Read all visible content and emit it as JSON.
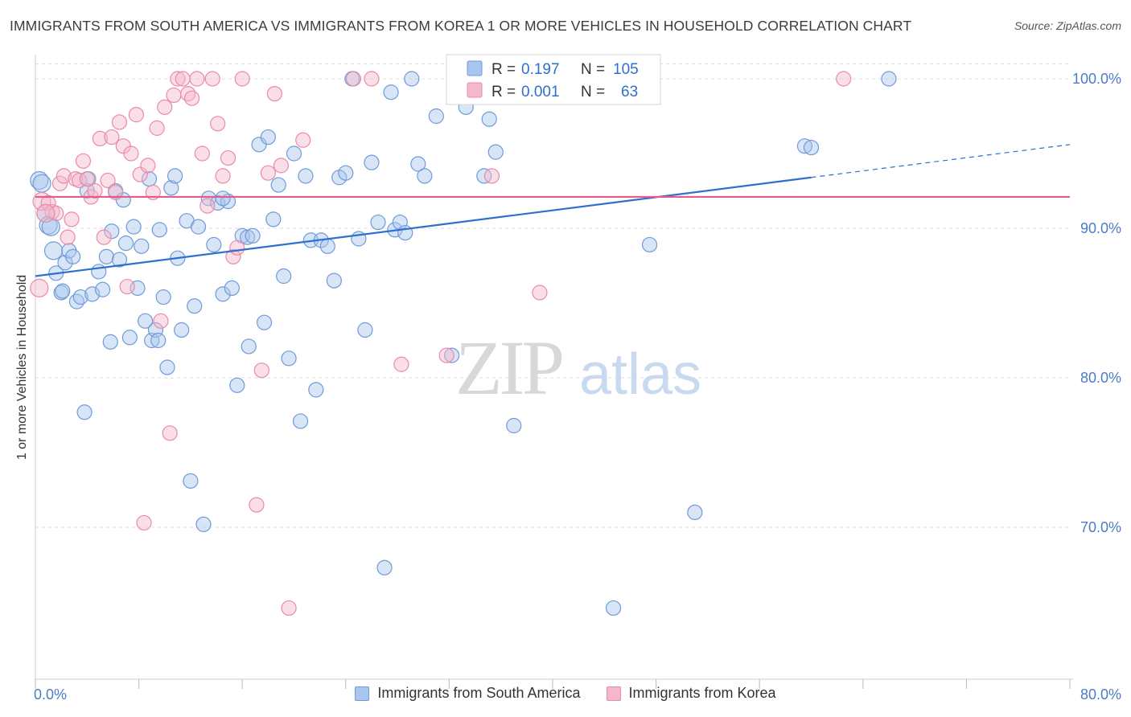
{
  "title": "IMMIGRANTS FROM SOUTH AMERICA VS IMMIGRANTS FROM KOREA 1 OR MORE VEHICLES IN HOUSEHOLD CORRELATION CHART",
  "source": "Source: ZipAtlas.com",
  "watermark": {
    "zip": "ZIP",
    "atlas": "atlas"
  },
  "legend_box": {
    "rows": [
      {
        "r_label": "R =",
        "r_value": "0.197",
        "n_label": "N =",
        "n_value": "105"
      },
      {
        "r_label": "R =",
        "r_value": "0.001",
        "n_label": "N =",
        "n_value": "63"
      }
    ]
  },
  "colors": {
    "south_america_fill": "#a9c6ee",
    "south_america_stroke": "#6f9bd8",
    "south_america_line": "#2f6fce",
    "korea_fill": "#f4b8cb",
    "korea_stroke": "#ea8aa9",
    "korea_line": "#e45a8a",
    "value_text": "#2f6fce",
    "grid": "#dddddd"
  },
  "chart_data": {
    "type": "scatter",
    "xlabel": "",
    "ylabel": "1 or more Vehicles in Household",
    "xlim": [
      0,
      80
    ],
    "ylim": [
      60,
      102
    ],
    "x_tick_labels": [
      "0.0%",
      "80.0%"
    ],
    "y_ticks": [
      70,
      80,
      90,
      100
    ],
    "y_tick_labels": [
      "70.0%",
      "80.0%",
      "90.0%",
      "100.0%"
    ],
    "grid": true,
    "legend_placement": "top-center",
    "series": [
      {
        "name": "Immigrants from South America",
        "r": 0.197,
        "n": 105,
        "trend": {
          "x0": 0,
          "y0": 86.8,
          "x1": 60,
          "y1": 93.4,
          "dashed_to_x": 80,
          "dashed_to_y": 95.6
        },
        "points": [
          [
            0.3,
            93.2
          ],
          [
            0.5,
            93.0
          ],
          [
            0.8,
            91.0
          ],
          [
            1.0,
            90.2
          ],
          [
            1.4,
            88.5
          ],
          [
            1.6,
            87.0
          ],
          [
            2.0,
            85.7
          ],
          [
            2.3,
            87.7
          ],
          [
            2.6,
            88.5
          ],
          [
            2.9,
            88.1
          ],
          [
            3.2,
            85.1
          ],
          [
            3.5,
            85.4
          ],
          [
            4.0,
            92.5
          ],
          [
            4.4,
            85.6
          ],
          [
            4.9,
            87.1
          ],
          [
            5.2,
            85.9
          ],
          [
            5.5,
            88.1
          ],
          [
            5.8,
            82.4
          ],
          [
            6.2,
            92.5
          ],
          [
            6.5,
            87.9
          ],
          [
            6.8,
            91.9
          ],
          [
            7.0,
            89.0
          ],
          [
            7.3,
            82.7
          ],
          [
            7.6,
            90.1
          ],
          [
            7.9,
            86.0
          ],
          [
            8.2,
            88.8
          ],
          [
            8.5,
            83.8
          ],
          [
            8.8,
            93.3
          ],
          [
            9.0,
            82.5
          ],
          [
            9.3,
            83.2
          ],
          [
            9.6,
            89.9
          ],
          [
            9.9,
            85.4
          ],
          [
            10.2,
            80.7
          ],
          [
            10.5,
            92.7
          ],
          [
            10.8,
            93.5
          ],
          [
            11.0,
            88.0
          ],
          [
            11.3,
            83.2
          ],
          [
            11.7,
            90.5
          ],
          [
            12.0,
            73.1
          ],
          [
            12.3,
            84.8
          ],
          [
            12.6,
            90.1
          ],
          [
            13.0,
            70.2
          ],
          [
            13.4,
            92.0
          ],
          [
            13.8,
            88.9
          ],
          [
            14.1,
            91.7
          ],
          [
            14.5,
            85.6
          ],
          [
            14.9,
            91.8
          ],
          [
            15.2,
            86.0
          ],
          [
            15.6,
            79.5
          ],
          [
            16.0,
            89.5
          ],
          [
            16.4,
            89.4
          ],
          [
            16.8,
            89.5
          ],
          [
            17.3,
            95.6
          ],
          [
            17.7,
            83.7
          ],
          [
            18.0,
            96.1
          ],
          [
            18.4,
            90.6
          ],
          [
            18.8,
            92.9
          ],
          [
            19.2,
            86.8
          ],
          [
            19.6,
            81.3
          ],
          [
            20.0,
            95.0
          ],
          [
            20.5,
            77.1
          ],
          [
            20.9,
            93.5
          ],
          [
            21.3,
            89.2
          ],
          [
            21.7,
            79.2
          ],
          [
            22.1,
            89.2
          ],
          [
            22.6,
            88.8
          ],
          [
            23.1,
            86.5
          ],
          [
            23.5,
            93.4
          ],
          [
            24.0,
            93.7
          ],
          [
            24.5,
            100.0
          ],
          [
            25.0,
            89.3
          ],
          [
            25.5,
            83.2
          ],
          [
            26.0,
            94.4
          ],
          [
            26.5,
            90.4
          ],
          [
            27.0,
            67.3
          ],
          [
            27.5,
            99.1
          ],
          [
            27.8,
            89.9
          ],
          [
            28.2,
            90.4
          ],
          [
            28.6,
            89.7
          ],
          [
            29.1,
            100.0
          ],
          [
            29.6,
            94.3
          ],
          [
            30.1,
            93.5
          ],
          [
            31.0,
            97.5
          ],
          [
            32.2,
            81.5
          ],
          [
            33.3,
            98.1
          ],
          [
            34.7,
            93.5
          ],
          [
            35.1,
            97.3
          ],
          [
            35.6,
            95.1
          ],
          [
            37.0,
            76.8
          ],
          [
            40.5,
            100.0
          ],
          [
            40.8,
            100.0
          ],
          [
            44.7,
            64.6
          ],
          [
            47.5,
            88.9
          ],
          [
            51.0,
            71.0
          ],
          [
            59.5,
            95.5
          ],
          [
            60.0,
            95.4
          ],
          [
            66.0,
            100.0
          ],
          [
            3.8,
            77.7
          ],
          [
            1.2,
            90.1
          ],
          [
            2.1,
            85.8
          ],
          [
            4.1,
            93.3
          ],
          [
            5.9,
            89.8
          ],
          [
            9.5,
            82.5
          ],
          [
            14.5,
            92.0
          ],
          [
            16.5,
            82.1
          ]
        ]
      },
      {
        "name": "Immigrants from Korea",
        "r": 0.001,
        "n": 63,
        "trend": {
          "x0": 0,
          "y0": 92.1,
          "x1": 80,
          "y1": 92.1
        },
        "points": [
          [
            0.3,
            86.0
          ],
          [
            0.5,
            91.8
          ],
          [
            1.0,
            91.7
          ],
          [
            1.3,
            91.1
          ],
          [
            1.6,
            91.0
          ],
          [
            1.9,
            93.0
          ],
          [
            2.2,
            93.5
          ],
          [
            2.5,
            89.4
          ],
          [
            2.8,
            90.6
          ],
          [
            3.1,
            93.3
          ],
          [
            3.4,
            93.2
          ],
          [
            3.7,
            94.5
          ],
          [
            4.0,
            93.3
          ],
          [
            4.3,
            92.1
          ],
          [
            4.6,
            92.5
          ],
          [
            5.0,
            96.0
          ],
          [
            5.3,
            89.4
          ],
          [
            5.6,
            93.2
          ],
          [
            5.9,
            96.1
          ],
          [
            6.2,
            92.4
          ],
          [
            6.5,
            97.1
          ],
          [
            6.8,
            95.5
          ],
          [
            7.1,
            86.1
          ],
          [
            7.4,
            95.0
          ],
          [
            7.8,
            97.6
          ],
          [
            8.1,
            93.6
          ],
          [
            8.4,
            70.3
          ],
          [
            8.7,
            94.2
          ],
          [
            9.1,
            92.4
          ],
          [
            9.4,
            96.7
          ],
          [
            9.7,
            83.8
          ],
          [
            10.0,
            98.1
          ],
          [
            10.4,
            76.3
          ],
          [
            10.7,
            98.9
          ],
          [
            11.0,
            100.0
          ],
          [
            11.4,
            100.0
          ],
          [
            11.8,
            99.0
          ],
          [
            12.1,
            98.7
          ],
          [
            12.5,
            100.0
          ],
          [
            12.9,
            95.0
          ],
          [
            13.3,
            91.5
          ],
          [
            13.7,
            100.0
          ],
          [
            14.1,
            97.0
          ],
          [
            14.5,
            93.5
          ],
          [
            14.9,
            94.7
          ],
          [
            15.3,
            88.1
          ],
          [
            15.6,
            88.7
          ],
          [
            16.0,
            100.0
          ],
          [
            17.1,
            71.5
          ],
          [
            17.5,
            80.5
          ],
          [
            18.0,
            93.7
          ],
          [
            18.5,
            99.0
          ],
          [
            19.0,
            94.2
          ],
          [
            19.6,
            64.6
          ],
          [
            20.7,
            95.9
          ],
          [
            24.6,
            100.0
          ],
          [
            26.0,
            100.0
          ],
          [
            28.3,
            80.9
          ],
          [
            31.8,
            81.5
          ],
          [
            35.3,
            93.5
          ],
          [
            39.0,
            85.7
          ],
          [
            62.5,
            100.0
          ],
          [
            0.8,
            91.0
          ]
        ]
      }
    ]
  }
}
